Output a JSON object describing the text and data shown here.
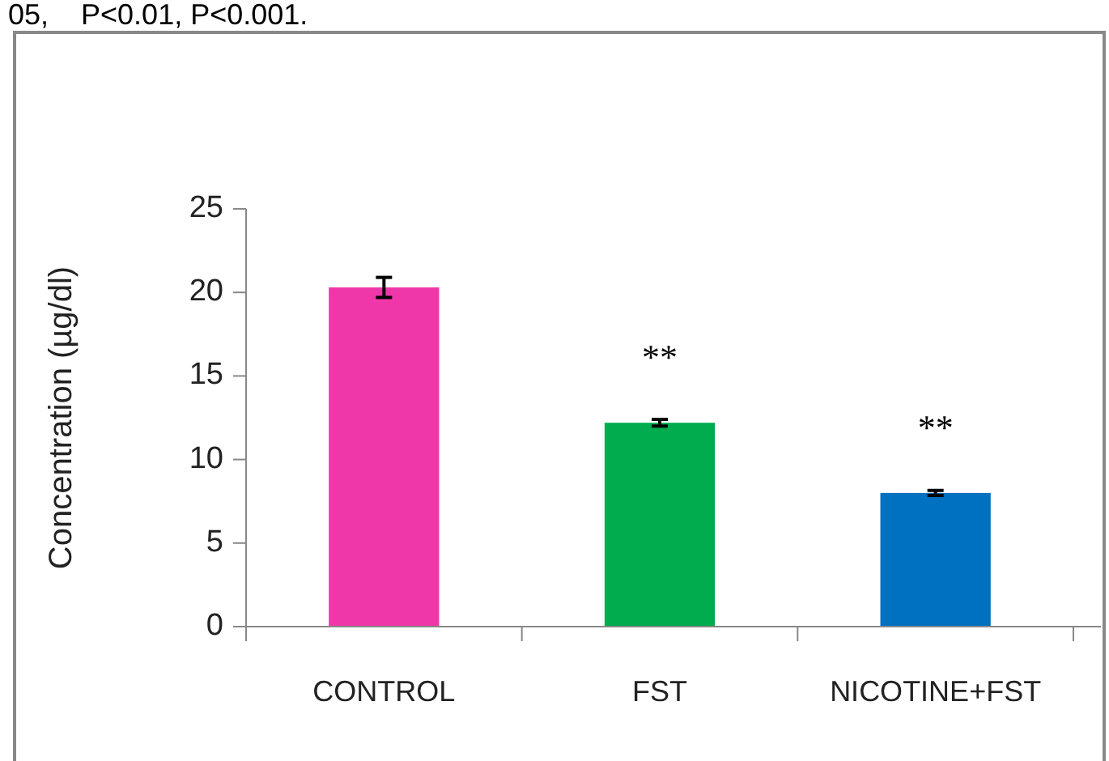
{
  "chart_data": {
    "type": "bar",
    "ylabel": "Concentration (µg/dl)",
    "categories": [
      "CONTROL",
      "FST",
      "NICOTINE+FST"
    ],
    "values": [
      20.3,
      12.2,
      8.0
    ],
    "colors": [
      "#ef37a9",
      "#00ac4e",
      "#0070c0"
    ],
    "errors": [
      0.6,
      0.2,
      0.15
    ],
    "ylim": [
      0,
      25
    ],
    "yticks": [
      0,
      5,
      10,
      15,
      20,
      25
    ],
    "grid": false,
    "annotations": [
      "05,    P<0.01, P<0.001.",
      "**",
      "**"
    ]
  }
}
